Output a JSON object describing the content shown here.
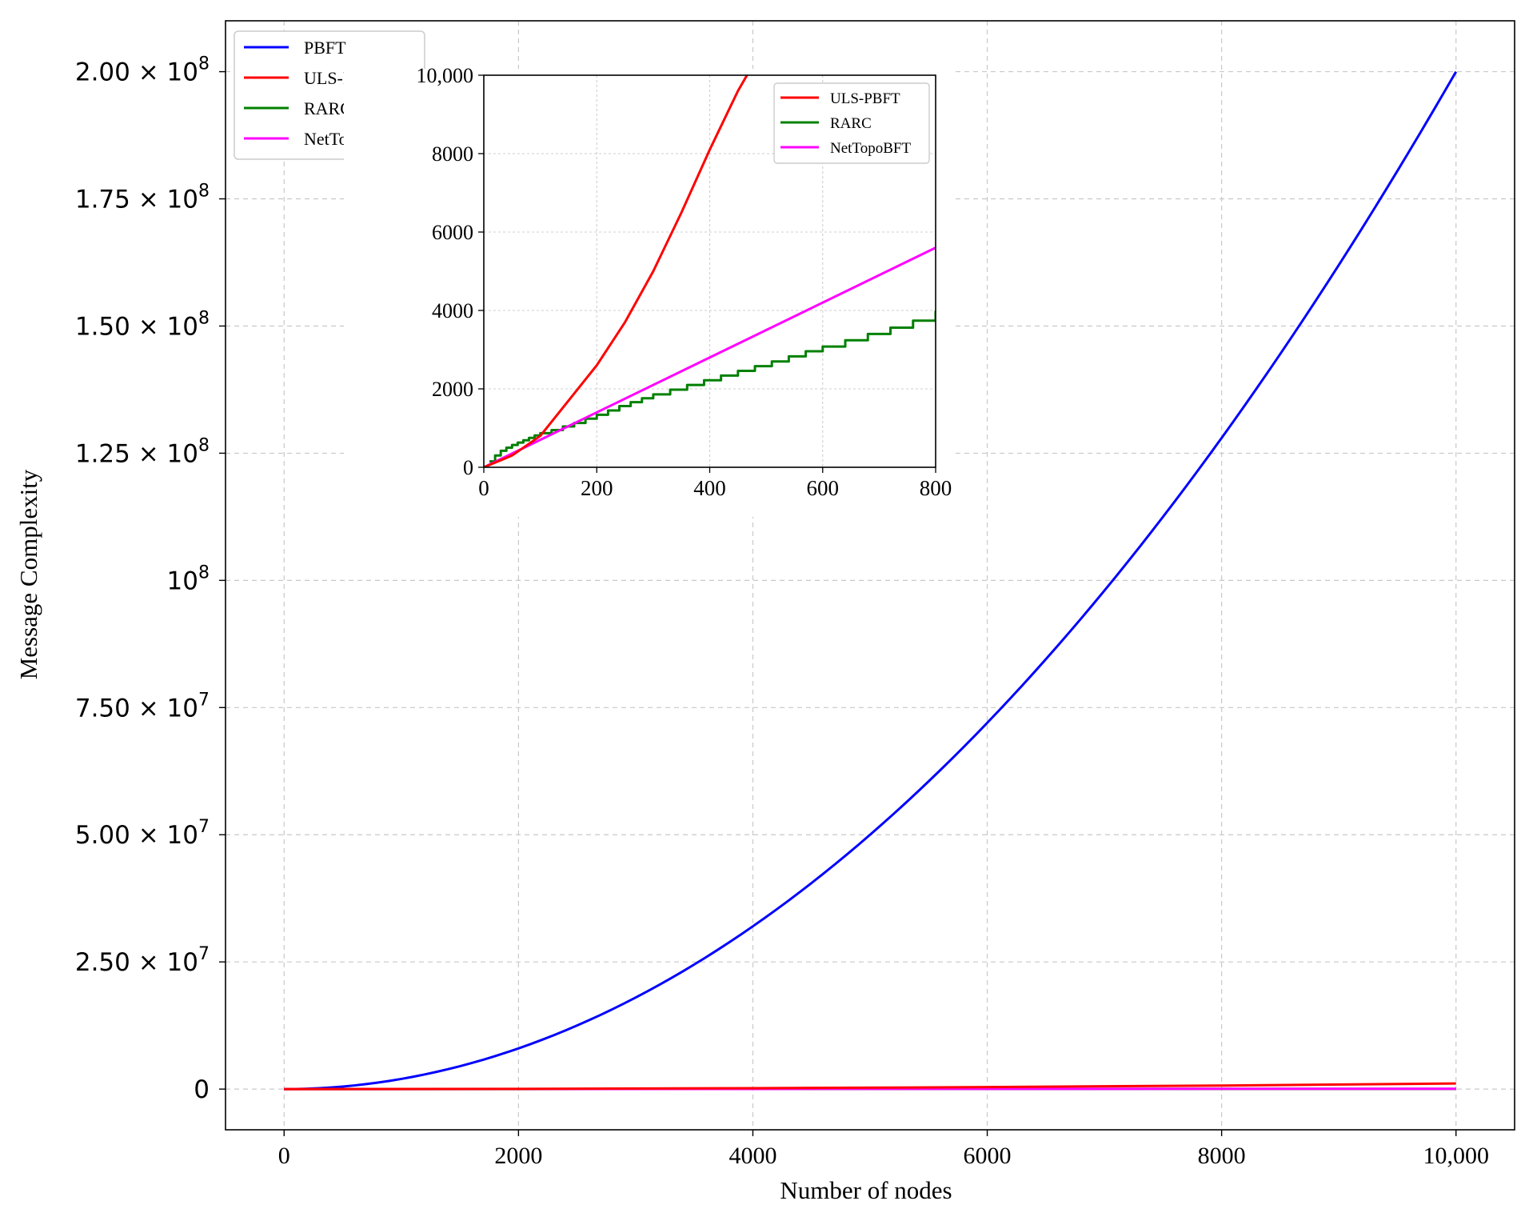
{
  "colors": {
    "PBFT": "#0000ff",
    "ULS-PBFT": "#ff0000",
    "RARC": "#008000",
    "NetTopoBFT": "#ff00ff"
  },
  "chart_data": [
    {
      "type": "line",
      "xlabel": "Number of nodes",
      "ylabel": "Message Complexity",
      "xlim": [
        -500,
        10500
      ],
      "ylim": [
        -8000000,
        210000000
      ],
      "x_ticks": [
        {
          "value": 0,
          "label": "0"
        },
        {
          "value": 2000,
          "label": "2000"
        },
        {
          "value": 4000,
          "label": "4000"
        },
        {
          "value": 6000,
          "label": "6000"
        },
        {
          "value": 8000,
          "label": "8000"
        },
        {
          "value": 10000,
          "label": "10,000"
        }
      ],
      "y_ticks": [
        {
          "value": 0,
          "mant": "0",
          "exp": ""
        },
        {
          "value": 25000000,
          "mant": "2.50 × 10",
          "exp": "7"
        },
        {
          "value": 50000000,
          "mant": "5.00 × 10",
          "exp": "7"
        },
        {
          "value": 75000000,
          "mant": "7.50 × 10",
          "exp": "7"
        },
        {
          "value": 100000000,
          "mant": "10",
          "exp": "8"
        },
        {
          "value": 125000000,
          "mant": "1.25 × 10",
          "exp": "8"
        },
        {
          "value": 150000000,
          "mant": "1.50 × 10",
          "exp": "8"
        },
        {
          "value": 175000000,
          "mant": "1.75 × 10",
          "exp": "8"
        },
        {
          "value": 200000000,
          "mant": "2.00 × 10",
          "exp": "8"
        }
      ],
      "grid": true,
      "legend_position": "top-left",
      "series": [
        {
          "name": "PBFT",
          "x": [
            0,
            1000,
            2000,
            3000,
            4000,
            5000,
            6000,
            7000,
            8000,
            9000,
            10000
          ],
          "y": [
            0,
            2000000,
            8000000,
            18000000,
            32000000,
            50000000,
            72000000,
            98000000,
            128000000,
            162000000,
            200000000
          ]
        },
        {
          "name": "ULS-PBFT",
          "x": [
            0,
            2000,
            4000,
            6000,
            8000,
            10000
          ],
          "y": [
            0,
            44000,
            175000,
            395000,
            700000,
            1100000
          ]
        },
        {
          "name": "RARC",
          "x": [
            0,
            2000,
            4000,
            6000,
            8000,
            10000
          ],
          "y": [
            0,
            10000,
            20000,
            30000,
            40000,
            50000
          ]
        },
        {
          "name": "NetTopoBFT",
          "x": [
            0,
            2000,
            4000,
            6000,
            8000,
            10000
          ],
          "y": [
            0,
            14000,
            28000,
            42000,
            56000,
            70000
          ]
        }
      ]
    },
    {
      "type": "line",
      "xlim": [
        0,
        800
      ],
      "ylim": [
        0,
        10000
      ],
      "x_ticks": [
        {
          "value": 0,
          "label": "0"
        },
        {
          "value": 200,
          "label": "200"
        },
        {
          "value": 400,
          "label": "400"
        },
        {
          "value": 600,
          "label": "600"
        },
        {
          "value": 800,
          "label": "800"
        }
      ],
      "y_ticks": [
        {
          "value": 0,
          "label": "0"
        },
        {
          "value": 2000,
          "label": "2000"
        },
        {
          "value": 4000,
          "label": "4000"
        },
        {
          "value": 6000,
          "label": "6000"
        },
        {
          "value": 8000,
          "label": "8000"
        },
        {
          "value": 10000,
          "label": "10,000"
        }
      ],
      "grid": true,
      "legend_position": "top-right",
      "series": [
        {
          "name": "ULS-PBFT",
          "x": [
            0,
            50,
            100,
            150,
            200,
            250,
            300,
            350,
            400,
            450,
            466
          ],
          "y": [
            0,
            300,
            800,
            1700,
            2600,
            3700,
            5000,
            6500,
            8100,
            9600,
            10000
          ]
        },
        {
          "name": "RARC",
          "x": [
            10,
            20,
            30,
            40,
            50,
            60,
            70,
            80,
            90,
            100,
            120,
            140,
            160,
            180,
            200,
            220,
            240,
            260,
            280,
            300,
            330,
            360,
            390,
            420,
            450,
            480,
            510,
            540,
            570,
            600,
            640,
            680,
            720,
            760,
            800
          ],
          "y": [
            150,
            300,
            420,
            500,
            570,
            630,
            690,
            750,
            810,
            870,
            950,
            1040,
            1130,
            1240,
            1340,
            1450,
            1560,
            1660,
            1760,
            1860,
            1980,
            2100,
            2220,
            2340,
            2460,
            2580,
            2700,
            2830,
            2960,
            3080,
            3240,
            3400,
            3560,
            3740,
            3990
          ]
        },
        {
          "name": "NetTopoBFT",
          "x": [
            0,
            800
          ],
          "y": [
            0,
            5600
          ]
        }
      ]
    }
  ]
}
